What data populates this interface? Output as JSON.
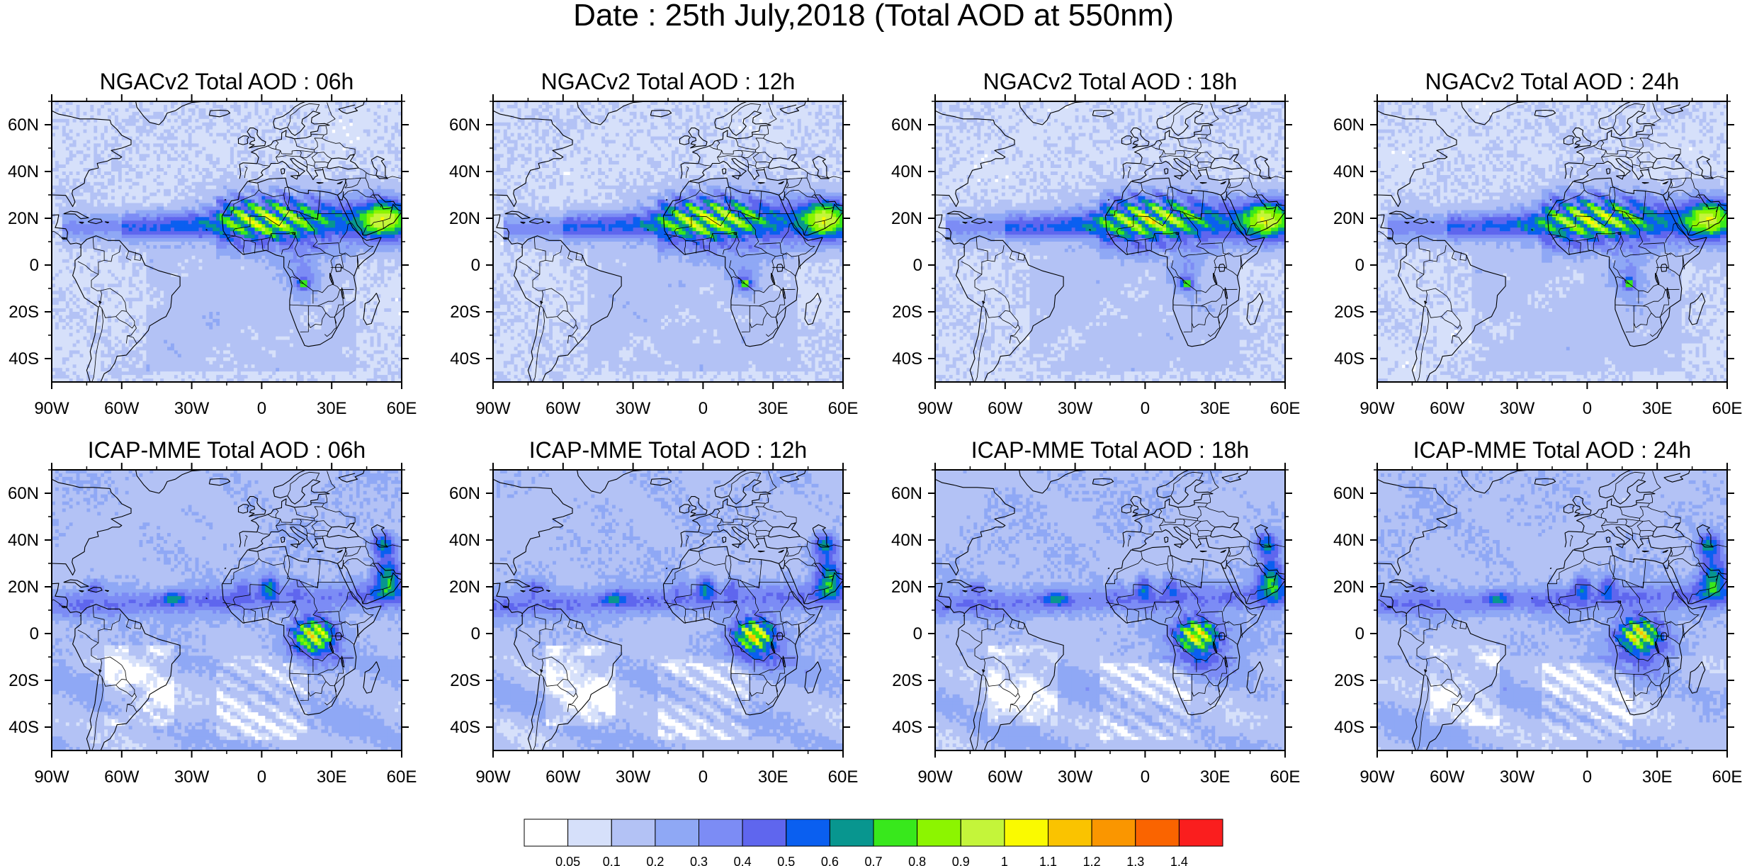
{
  "title": "Date : 25th July,2018 (Total AOD at 550nm)",
  "lon_ticks": [
    "90W",
    "60W",
    "30W",
    "0",
    "30E",
    "60E"
  ],
  "lat_ticks": [
    "60N",
    "40N",
    "20N",
    "0",
    "20S",
    "40S"
  ],
  "map_extent": {
    "lon": [
      -90,
      60
    ],
    "lat": [
      -50,
      70
    ]
  },
  "panels": [
    {
      "title": "NGACv2 Total AOD : 06h",
      "model": "NGACv2",
      "hour": "06h"
    },
    {
      "title": "NGACv2 Total AOD : 12h",
      "model": "NGACv2",
      "hour": "12h"
    },
    {
      "title": "NGACv2 Total AOD : 18h",
      "model": "NGACv2",
      "hour": "18h"
    },
    {
      "title": "NGACv2 Total AOD : 24h",
      "model": "NGACv2",
      "hour": "24h"
    },
    {
      "title": "ICAP-MME Total AOD : 06h",
      "model": "ICAP-MME",
      "hour": "06h"
    },
    {
      "title": "ICAP-MME Total AOD : 12h",
      "model": "ICAP-MME",
      "hour": "12h"
    },
    {
      "title": "ICAP-MME Total AOD : 18h",
      "model": "ICAP-MME",
      "hour": "18h"
    },
    {
      "title": "ICAP-MME Total AOD : 24h",
      "model": "ICAP-MME",
      "hour": "24h"
    }
  ],
  "colorbar": {
    "colors": [
      "#ffffff",
      "#d6e0fa",
      "#b3c2f5",
      "#8fa8f5",
      "#7c8cf5",
      "#5f66ee",
      "#0a5ff0",
      "#08968f",
      "#38e81c",
      "#8cf500",
      "#c4f53a",
      "#fafa00",
      "#fac300",
      "#fa9600",
      "#fa6400",
      "#fa1e1e"
    ],
    "labels": [
      "0.05",
      "0.1",
      "0.2",
      "0.3",
      "0.4",
      "0.5",
      "0.6",
      "0.7",
      "0.8",
      "0.9",
      "1",
      "1.1",
      "1.2",
      "1.3",
      "1.4"
    ]
  }
}
